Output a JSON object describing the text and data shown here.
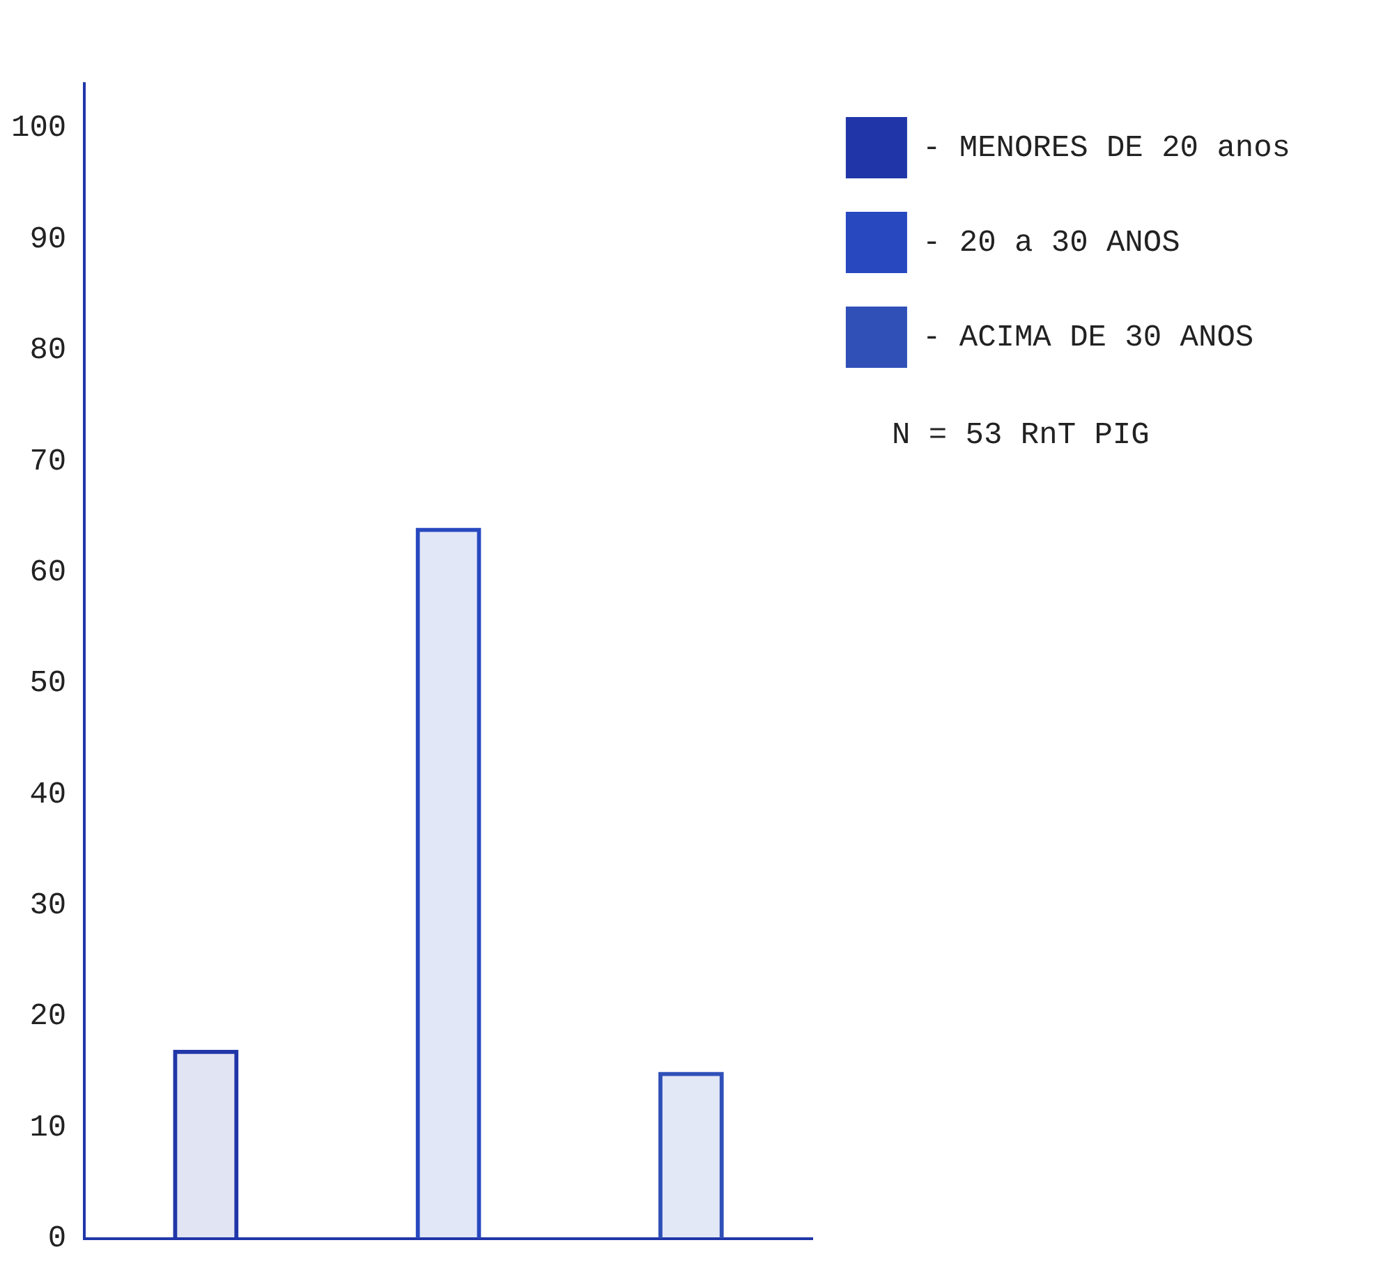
{
  "chart_data": {
    "type": "bar",
    "categories": [
      null,
      null,
      null
    ],
    "series": [
      {
        "name": "- MENORES DE 20 anos",
        "color": "#2036a8",
        "values": [
          17,
          null,
          null
        ]
      },
      {
        "name": "- 20 a 30 ANOS",
        "color": "#2848c0",
        "values": [
          null,
          64,
          null
        ]
      },
      {
        "name": "- ACIMA DE 30 ANOS",
        "color": "#3050b8",
        "values": [
          null,
          null,
          15
        ]
      }
    ],
    "ylim": [
      0,
      104
    ],
    "yticks": [
      0,
      10,
      20,
      30,
      40,
      50,
      60,
      70,
      80,
      90,
      100
    ],
    "tick_labels": "y",
    "grid": false,
    "legend": "top right",
    "annotations": [
      "N = 53 RnT PIG"
    ]
  }
}
